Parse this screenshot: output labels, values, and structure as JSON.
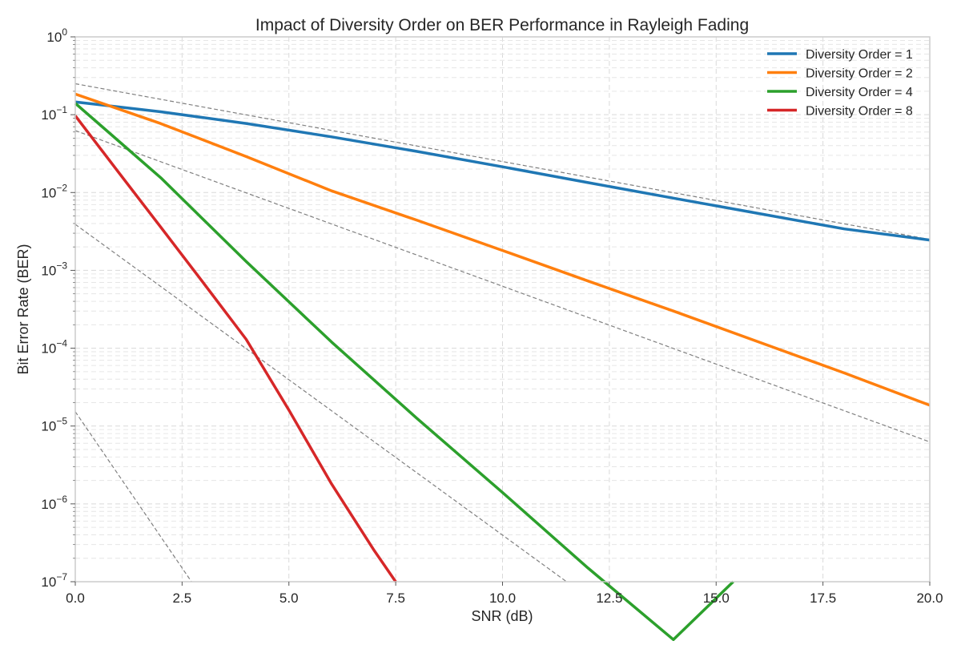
{
  "chart_data": {
    "type": "line",
    "title": "Impact of Diversity Order on BER Performance in Rayleigh Fading",
    "xlabel": "SNR (dB)",
    "ylabel": "Bit Error Rate (BER)",
    "xlim": [
      0,
      20
    ],
    "ylim": [
      1e-07,
      1
    ],
    "yscale": "log",
    "grid": true,
    "legend_position": "top-right",
    "xticks": [
      0,
      2.5,
      5,
      7.5,
      10,
      12.5,
      15,
      17.5,
      20
    ],
    "xtick_labels": [
      "0.0",
      "2.5",
      "5.0",
      "7.5",
      "10.0",
      "12.5",
      "15.0",
      "17.5",
      "20.0"
    ],
    "ytick_base": "10",
    "ytick_exponents": [
      "0",
      "−1",
      "−2",
      "−3",
      "−4",
      "−5",
      "−6",
      "−7"
    ],
    "series": [
      {
        "name": "Diversity Order = 1",
        "color": "#1f77b4",
        "x": [
          0,
          2,
          4,
          6,
          8,
          10,
          12,
          14,
          16,
          18,
          20
        ],
        "y": [
          0.146,
          0.109,
          0.0771,
          0.0519,
          0.0337,
          0.0214,
          0.0134,
          0.00846,
          0.00537,
          0.00341,
          0.00245
        ]
      },
      {
        "name": "Diversity Order = 2",
        "color": "#ff7f0e",
        "x": [
          0,
          2,
          4,
          6,
          8,
          10,
          12,
          14,
          16,
          18,
          20
        ],
        "y": [
          0.184,
          0.077,
          0.029,
          0.0105,
          0.0044,
          0.0018,
          0.00073,
          0.0003,
          0.00012,
          4.8e-05,
          1.85e-05
        ]
      },
      {
        "name": "Diversity Order = 4",
        "color": "#2ca02c",
        "x": [
          0,
          2,
          4,
          6,
          8,
          10,
          12,
          14,
          15.4
        ],
        "y": [
          0.14,
          0.0155,
          0.0013,
          0.00012,
          1.25e-05,
          1.4e-06,
          1.5e-07,
          1.8e-08,
          1e-07
        ]
      },
      {
        "name": "Diversity Order = 8",
        "color": "#d62728",
        "x": [
          0,
          1,
          2,
          3,
          4,
          5,
          6,
          7,
          7.5
        ],
        "y": [
          0.097,
          0.0186,
          0.0036,
          0.00069,
          0.00013,
          1.6e-05,
          1.8e-06,
          2.5e-07,
          1e-07
        ]
      }
    ],
    "reference_lines": [
      {
        "x": [
          0,
          20
        ],
        "y": [
          0.25,
          0.0025
        ]
      },
      {
        "x": [
          0,
          20
        ],
        "y": [
          0.0625,
          6.25e-06
        ]
      },
      {
        "x": [
          0,
          11.5
        ],
        "y": [
          0.0039,
          1e-07
        ]
      },
      {
        "x": [
          0,
          2.72
        ],
        "y": [
          1.53e-05,
          1e-07
        ]
      }
    ]
  }
}
